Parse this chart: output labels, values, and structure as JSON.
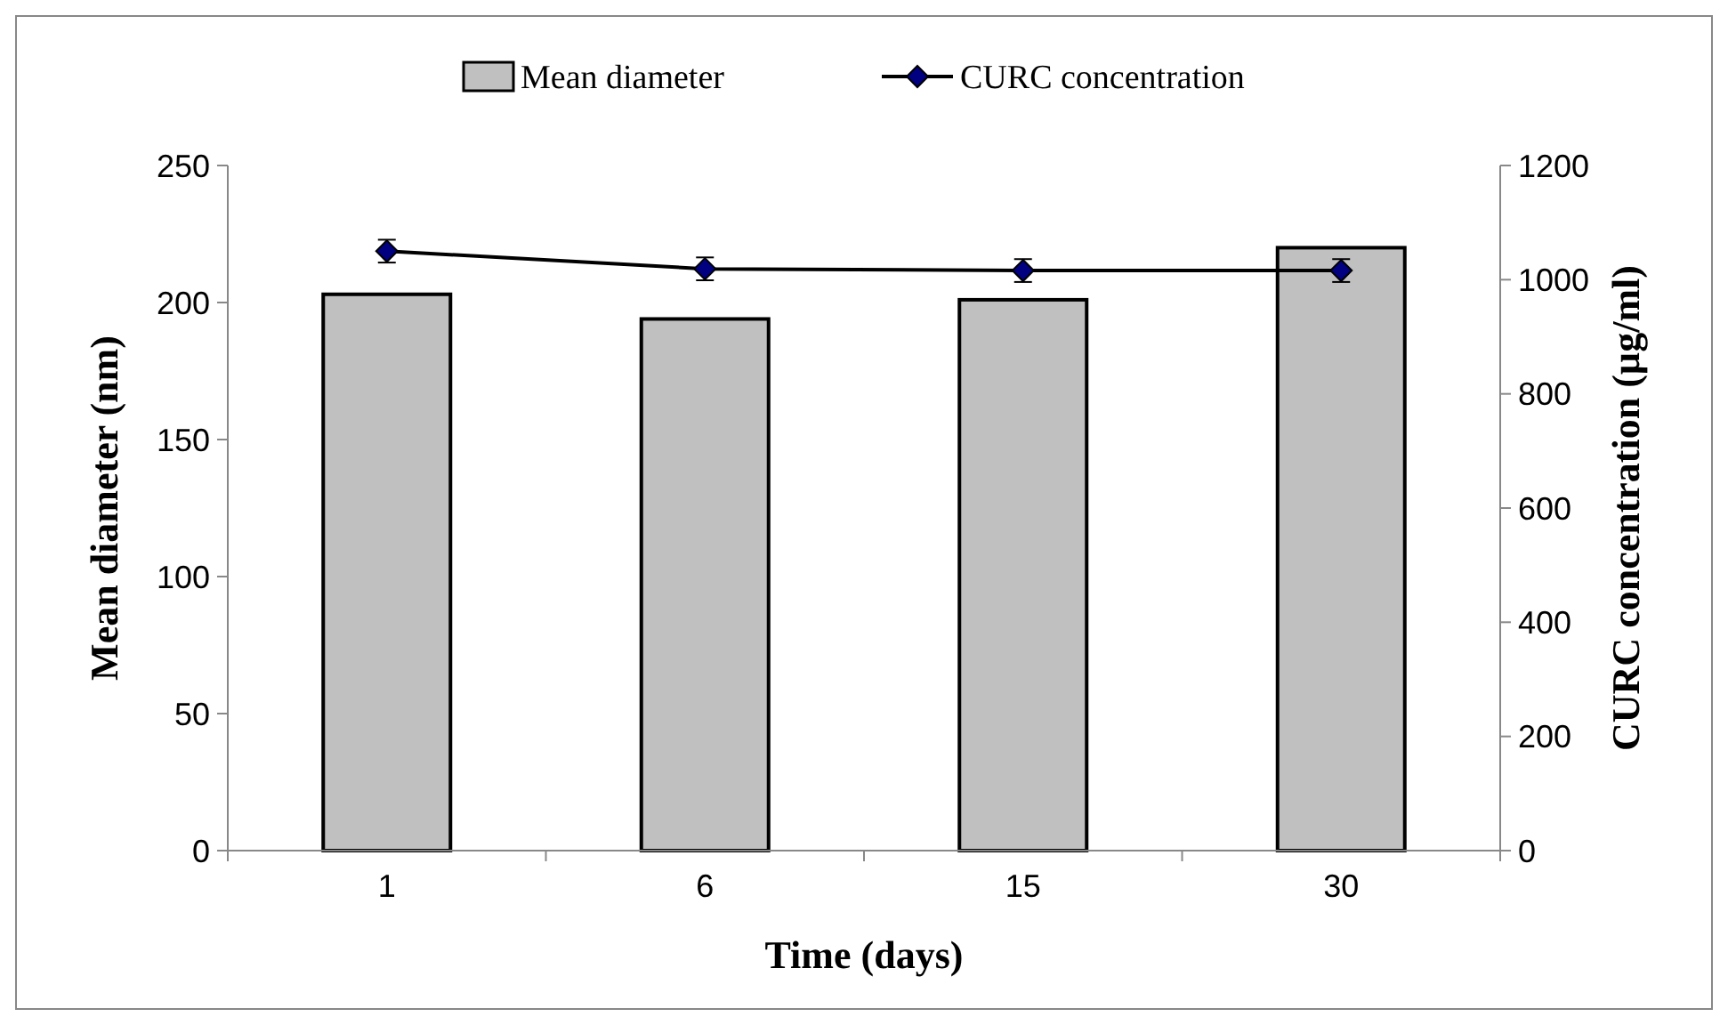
{
  "chart_data": {
    "type": "bar",
    "xlabel": "Time (days)",
    "ylabel": "Mean diameter (nm)",
    "y2label": "CURC concentration (µg/ml)",
    "categories": [
      "1",
      "6",
      "15",
      "30"
    ],
    "series": [
      {
        "name": "Mean diameter",
        "color": "#c0c0c0",
        "values": [
          203,
          194,
          201,
          220
        ]
      },
      {
        "name": "CURC concentration",
        "type": "line",
        "axis": "y2",
        "color": "#000080",
        "marker": "diamond",
        "values": [
          1050,
          1019,
          1016,
          1016
        ],
        "errors": [
          20,
          20,
          20,
          20
        ]
      }
    ],
    "ylim": [
      0,
      250
    ],
    "yticks": [
      0,
      50,
      100,
      150,
      200,
      250
    ],
    "y2lim": [
      0,
      1200
    ],
    "y2ticks": [
      0,
      200,
      400,
      600,
      800,
      1000,
      1200
    ],
    "legend": "top",
    "grid": false
  }
}
